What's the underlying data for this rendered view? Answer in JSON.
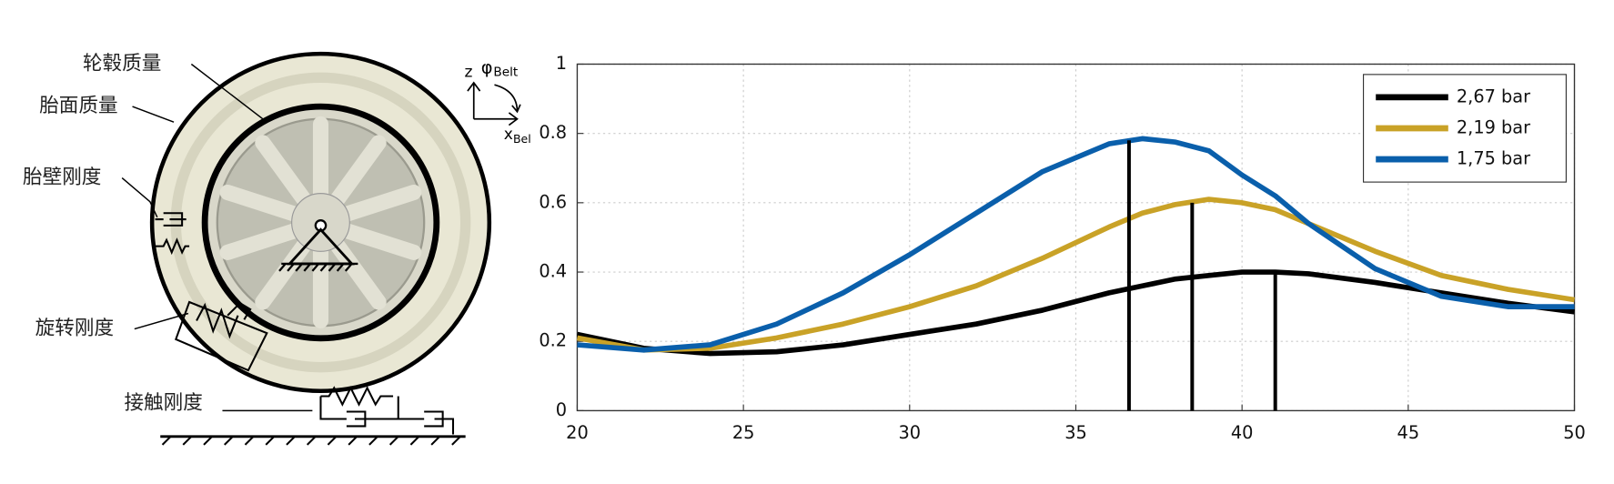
{
  "diagram": {
    "labels": [
      "轮毂质量",
      "胎面质量",
      "胎壁刚度",
      "旋转刚度",
      "接触刚度"
    ],
    "axes": {
      "z": "z",
      "phi": "φ",
      "phi_sub": "Belt",
      "x": "x",
      "x_sub": "Bel"
    }
  },
  "chart_data": {
    "type": "line",
    "x": [
      20,
      22,
      24,
      26,
      28,
      30,
      32,
      34,
      36,
      37,
      38,
      39,
      40,
      41,
      42,
      44,
      46,
      48,
      50
    ],
    "series": [
      {
        "name": "2,67 bar",
        "color": "#000000",
        "values": [
          0.22,
          0.18,
          0.165,
          0.17,
          0.19,
          0.22,
          0.25,
          0.29,
          0.34,
          0.36,
          0.38,
          0.39,
          0.4,
          0.4,
          0.395,
          0.37,
          0.34,
          0.31,
          0.285
        ]
      },
      {
        "name": "2,19 bar",
        "color": "#c9a227",
        "values": [
          0.21,
          0.175,
          0.18,
          0.21,
          0.25,
          0.3,
          0.36,
          0.44,
          0.53,
          0.57,
          0.595,
          0.61,
          0.6,
          0.58,
          0.54,
          0.46,
          0.39,
          0.35,
          0.32
        ]
      },
      {
        "name": "1,75 bar",
        "color": "#0a5fab",
        "values": [
          0.19,
          0.175,
          0.19,
          0.25,
          0.34,
          0.45,
          0.57,
          0.69,
          0.77,
          0.785,
          0.775,
          0.75,
          0.68,
          0.62,
          0.54,
          0.41,
          0.33,
          0.3,
          0.3
        ]
      }
    ],
    "markers": [
      {
        "x": 36.6,
        "y": 0.78
      },
      {
        "x": 38.5,
        "y": 0.6
      },
      {
        "x": 41,
        "y": 0.4
      }
    ],
    "xlim": [
      20,
      50
    ],
    "ylim": [
      0,
      1
    ],
    "xticks": [
      20,
      25,
      30,
      35,
      40,
      45,
      50
    ],
    "yticks": [
      0,
      0.2,
      0.4,
      0.6,
      0.8,
      1
    ],
    "grid": true,
    "legend": "upper right"
  }
}
